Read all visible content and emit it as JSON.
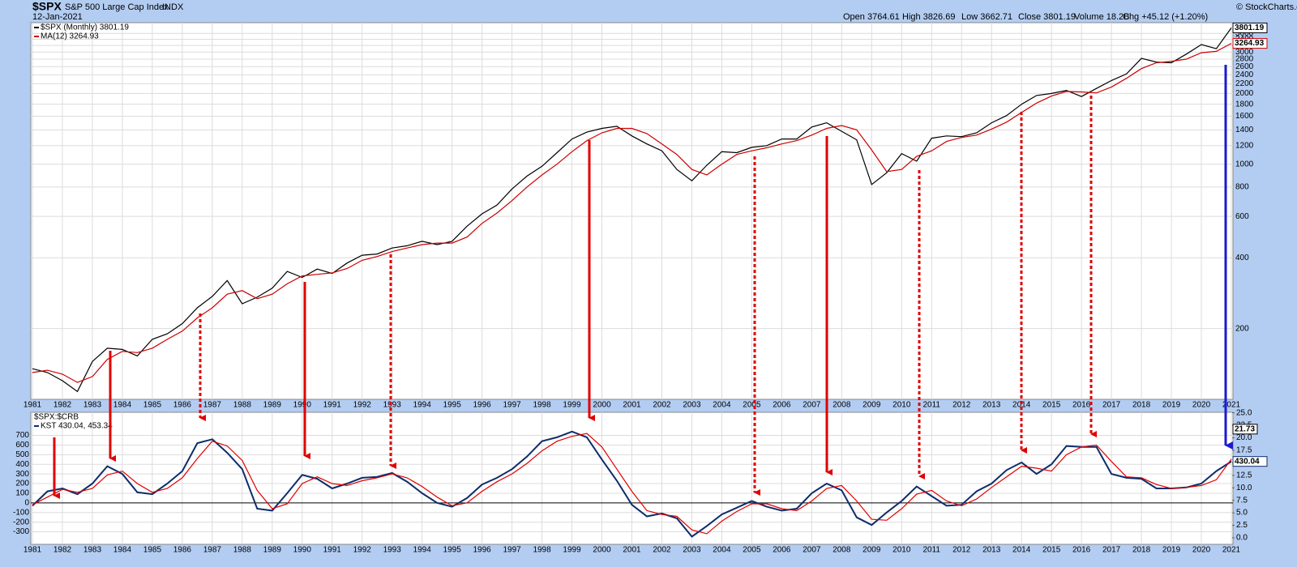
{
  "header": {
    "symbol": "$SPX",
    "name": "S&P 500 Large Cap Index",
    "exchange": "INDX",
    "date": "12-Jan-2021",
    "quote": [
      "Open 3764.61",
      "High 3826.69",
      "Low 3662.71",
      "Close 3801.19",
      "Volume 18.2B",
      "Chg +45.12 (+1.20%)"
    ],
    "credit": "© StockCharts.com"
  },
  "chart_data": [
    {
      "type": "line",
      "log_scale": true,
      "grid": true,
      "legend": [
        "$SPX (Monthly) 3801.19",
        "MA(12) 3264.93"
      ],
      "x": [
        1981,
        1981.5,
        1982,
        1982.5,
        1983,
        1983.5,
        1984,
        1984.5,
        1985,
        1985.5,
        1986,
        1986.5,
        1987,
        1987.5,
        1988,
        1988.5,
        1989,
        1989.5,
        1990,
        1990.5,
        1991,
        1991.5,
        1992,
        1992.5,
        1993,
        1993.5,
        1994,
        1994.5,
        1995,
        1995.5,
        1996,
        1996.5,
        1997,
        1997.5,
        1998,
        1998.5,
        1999,
        1999.5,
        2000,
        2000.5,
        2001,
        2001.5,
        2002,
        2002.5,
        2003,
        2003.5,
        2004,
        2004.5,
        2005,
        2005.5,
        2006,
        2006.5,
        2007,
        2007.5,
        2008,
        2008.5,
        2009,
        2009.5,
        2010,
        2010.5,
        2011,
        2011.5,
        2012,
        2012.5,
        2013,
        2013.5,
        2014,
        2014.5,
        2015,
        2015.5,
        2016,
        2016.5,
        2017,
        2017.5,
        2018,
        2018.5,
        2019,
        2019.5,
        2020,
        2020.5,
        2021
      ],
      "series": [
        {
          "name": "$SPX (Monthly)",
          "color": "#000000",
          "last_label": "3801.19",
          "values": [
            135,
            130,
            120,
            108,
            145,
            165,
            163,
            153,
            180,
            190,
            210,
            245,
            274,
            320,
            255,
            272,
            297,
            350,
            330,
            358,
            343,
            380,
            410,
            415,
            440,
            450,
            470,
            455,
            470,
            545,
            615,
            670,
            785,
            890,
            980,
            1120,
            1280,
            1370,
            1420,
            1450,
            1320,
            1220,
            1140,
            950,
            850,
            990,
            1130,
            1120,
            1180,
            1200,
            1280,
            1280,
            1440,
            1500,
            1380,
            1270,
            820,
            920,
            1110,
            1030,
            1290,
            1320,
            1310,
            1360,
            1500,
            1610,
            1800,
            1960,
            2000,
            2060,
            1940,
            2100,
            2270,
            2420,
            2820,
            2720,
            2700,
            2940,
            3230,
            3100,
            3801.19
          ]
        },
        {
          "name": "MA(12)",
          "color": "#cc0000",
          "last_label": "3264.93",
          "values": [
            130,
            133,
            128,
            118,
            125,
            148,
            160,
            158,
            165,
            180,
            195,
            222,
            245,
            280,
            290,
            268,
            280,
            310,
            335,
            340,
            345,
            360,
            390,
            405,
            425,
            440,
            455,
            462,
            462,
            490,
            560,
            620,
            700,
            800,
            900,
            1000,
            1130,
            1260,
            1360,
            1420,
            1420,
            1350,
            1220,
            1100,
            950,
            900,
            1000,
            1100,
            1140,
            1175,
            1220,
            1260,
            1330,
            1420,
            1460,
            1400,
            1150,
            930,
            950,
            1080,
            1140,
            1250,
            1300,
            1330,
            1410,
            1510,
            1660,
            1820,
            1950,
            2040,
            2030,
            2010,
            2130,
            2320,
            2550,
            2700,
            2740,
            2800,
            2980,
            3020,
            3264.93
          ]
        }
      ],
      "xlim": [
        1981,
        2021
      ],
      "xticks": [
        1981,
        1982,
        1983,
        1984,
        1985,
        1986,
        1987,
        1988,
        1989,
        1990,
        1991,
        1992,
        1993,
        1994,
        1995,
        1996,
        1997,
        1998,
        1999,
        2000,
        2001,
        2002,
        2003,
        2004,
        2005,
        2006,
        2007,
        2008,
        2009,
        2010,
        2011,
        2012,
        2013,
        2014,
        2015,
        2016,
        2017,
        2018,
        2019,
        2020,
        2021
      ],
      "ylim": [
        100,
        4000
      ],
      "yticks": [
        200,
        400,
        600,
        800,
        1000,
        1200,
        1400,
        1600,
        1800,
        2000,
        2200,
        2400,
        2600,
        2800,
        3000,
        3200,
        3400,
        3600
      ]
    },
    {
      "type": "line",
      "title": "$SPX:$CRB",
      "grid": true,
      "legend": [
        "KST 430.04, 453.34"
      ],
      "x": [
        1981,
        1981.5,
        1982,
        1982.5,
        1983,
        1983.5,
        1984,
        1984.5,
        1985,
        1985.5,
        1986,
        1986.5,
        1987,
        1987.5,
        1988,
        1988.5,
        1989,
        1989.5,
        1990,
        1990.5,
        1991,
        1991.5,
        1992,
        1992.5,
        1993,
        1993.5,
        1994,
        1994.5,
        1995,
        1995.5,
        1996,
        1996.5,
        1997,
        1997.5,
        1998,
        1998.5,
        1999,
        1999.5,
        2000,
        2000.5,
        2001,
        2001.5,
        2002,
        2002.5,
        2003,
        2003.5,
        2004,
        2004.5,
        2005,
        2005.5,
        2006,
        2006.5,
        2007,
        2007.5,
        2008,
        2008.5,
        2009,
        2009.5,
        2010,
        2010.5,
        2011,
        2011.5,
        2012,
        2012.5,
        2013,
        2013.5,
        2014,
        2014.5,
        2015,
        2015.5,
        2016,
        2016.5,
        2017,
        2017.5,
        2018,
        2018.5,
        2019,
        2019.5,
        2020,
        2020.5,
        2021
      ],
      "series": [
        {
          "name": "KST",
          "color": "#0d2d6b",
          "last_label": "430.04",
          "values": [
            -30,
            120,
            150,
            90,
            200,
            380,
            300,
            110,
            90,
            200,
            330,
            620,
            660,
            520,
            350,
            -60,
            -80,
            100,
            290,
            250,
            150,
            200,
            260,
            270,
            310,
            220,
            100,
            0,
            -40,
            50,
            190,
            260,
            350,
            480,
            640,
            680,
            740,
            680,
            450,
            230,
            -20,
            -140,
            -110,
            -160,
            -350,
            -240,
            -120,
            -50,
            20,
            -40,
            -80,
            -60,
            100,
            200,
            130,
            -150,
            -230,
            -100,
            20,
            170,
            70,
            -30,
            -20,
            120,
            200,
            340,
            420,
            300,
            400,
            590,
            580,
            580,
            300,
            260,
            250,
            150,
            150,
            160,
            200,
            330,
            430.04
          ]
        },
        {
          "color": "#e00000",
          "values": [
            -20,
            60,
            140,
            110,
            150,
            290,
            330,
            200,
            110,
            150,
            260,
            460,
            640,
            590,
            440,
            130,
            -60,
            -10,
            200,
            270,
            200,
            180,
            230,
            260,
            300,
            260,
            170,
            60,
            -30,
            0,
            120,
            220,
            300,
            410,
            540,
            640,
            690,
            720,
            580,
            350,
            120,
            -80,
            -120,
            -140,
            -280,
            -320,
            -190,
            -90,
            -10,
            -10,
            -60,
            -80,
            20,
            150,
            180,
            20,
            -170,
            -180,
            -60,
            90,
            130,
            20,
            -30,
            40,
            160,
            270,
            380,
            360,
            330,
            500,
            580,
            600,
            430,
            270,
            260,
            190,
            150,
            160,
            180,
            240,
            453.34
          ]
        }
      ],
      "xlim": [
        1981,
        2021
      ],
      "xticks": [
        1981,
        1982,
        1983,
        1984,
        1985,
        1986,
        1987,
        1988,
        1989,
        1990,
        1991,
        1992,
        1993,
        1994,
        1995,
        1996,
        1997,
        1998,
        1999,
        2000,
        2001,
        2002,
        2003,
        2004,
        2005,
        2006,
        2007,
        2008,
        2009,
        2010,
        2011,
        2012,
        2013,
        2014,
        2015,
        2016,
        2017,
        2018,
        2019,
        2020,
        2021
      ],
      "ylim": [
        -430,
        940
      ],
      "yticks": [
        -300,
        -200,
        -100,
        0,
        100,
        200,
        300,
        400,
        500,
        600,
        700
      ],
      "y2lim": [
        -1.3,
        25.1
      ],
      "ratio_last": 21.73,
      "y2ticks": [
        {
          "value": 0,
          "label": "0.0"
        },
        {
          "value": 2.5,
          "label": "2.5"
        },
        {
          "value": 5,
          "label": "5.0"
        },
        {
          "value": 7.5,
          "label": "7.5"
        },
        {
          "value": 10,
          "label": "10.0"
        },
        {
          "value": 12.5,
          "label": "12.5"
        },
        {
          "value": 15,
          "label": "15.0"
        },
        {
          "value": 17.5,
          "label": "17.5"
        },
        {
          "value": 20,
          "label": "20.0"
        },
        {
          "value": 22.5,
          "label": "22.5"
        },
        {
          "value": 25,
          "label": "25.0"
        }
      ]
    }
  ]
}
